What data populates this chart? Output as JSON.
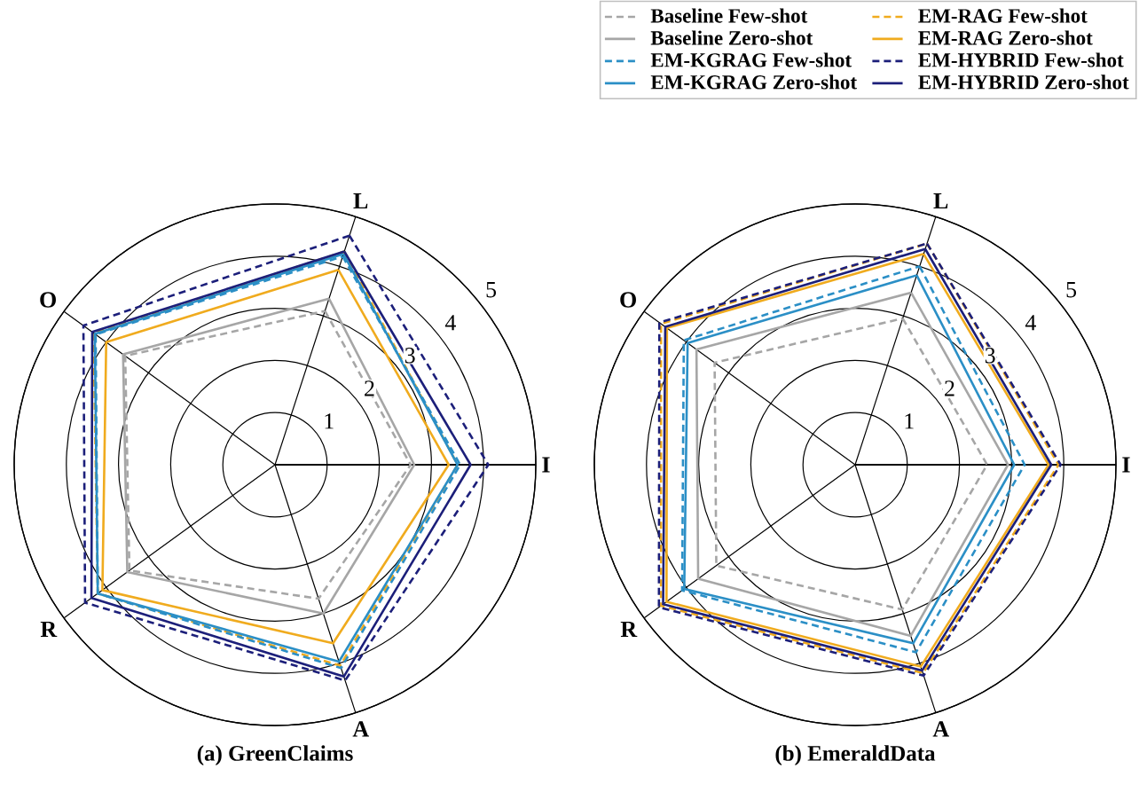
{
  "chart_data": [
    {
      "type": "radar",
      "title": "(a) GreenClaims",
      "categories": [
        "L",
        "I",
        "A",
        "R",
        "O"
      ],
      "ylim": [
        0,
        5
      ],
      "yticks": [
        1,
        2,
        3,
        4,
        5
      ],
      "grid": true,
      "series": [
        {
          "color": "#a6a6a6",
          "line_style": "dashed",
          "values": [
            3.1,
            2.6,
            2.7,
            3.45,
            3.55
          ]
        },
        {
          "color": "#f0ab1e",
          "line_style": "dashed",
          "values": [
            4.3,
            3.5,
            4.05,
            4.2,
            4.3
          ]
        },
        {
          "color": "#a6a6a6",
          "line_style": "solid",
          "values": [
            3.35,
            2.67,
            3.0,
            3.5,
            3.6
          ]
        },
        {
          "color": "#f0ab1e",
          "line_style": "solid",
          "values": [
            3.93,
            3.33,
            3.6,
            4.09,
            4.0
          ]
        },
        {
          "color": "#2b8fc6",
          "line_style": "dashed",
          "values": [
            4.2,
            3.55,
            4.1,
            4.2,
            4.25
          ]
        },
        {
          "color": "#1c1f7a",
          "line_style": "dashed",
          "values": [
            4.62,
            4.09,
            4.35,
            4.5,
            4.54
          ]
        },
        {
          "color": "#2b8fc6",
          "line_style": "solid",
          "values": [
            4.25,
            3.5,
            3.97,
            4.2,
            4.27
          ]
        },
        {
          "color": "#1c1f7a",
          "line_style": "solid",
          "values": [
            4.3,
            3.75,
            4.27,
            4.35,
            4.33
          ]
        }
      ]
    },
    {
      "type": "radar",
      "title": "(b) EmeraldData",
      "categories": [
        "L",
        "I",
        "A",
        "R",
        "O"
      ],
      "ylim": [
        0,
        5
      ],
      "yticks": [
        1,
        2,
        3,
        4,
        5
      ],
      "grid": true,
      "legend": "top",
      "series": [
        {
          "name": "Baseline Few-shot",
          "color": "#a6a6a6",
          "line_style": "dashed",
          "values": [
            2.95,
            2.53,
            2.92,
            3.29,
            3.33
          ]
        },
        {
          "name": "EM-RAG Few-shot",
          "color": "#f0ab1e",
          "line_style": "dashed",
          "values": [
            4.46,
            3.9,
            4.2,
            4.6,
            4.6
          ]
        },
        {
          "name": "Baseline Zero-shot",
          "color": "#a6a6a6",
          "line_style": "solid",
          "values": [
            3.47,
            2.93,
            3.45,
            3.72,
            3.76
          ]
        },
        {
          "name": "EM-RAG Zero-shot",
          "color": "#f0ab1e",
          "line_style": "solid",
          "values": [
            4.25,
            3.71,
            4.07,
            4.47,
            4.46
          ]
        },
        {
          "name": "EM-KGRAG Few-shot",
          "color": "#2b8fc6",
          "line_style": "dashed",
          "values": [
            4.0,
            3.25,
            3.78,
            4.1,
            4.06
          ]
        },
        {
          "name": "EM-HYBRID Few-shot",
          "color": "#1c1f7a",
          "line_style": "dashed",
          "values": [
            4.46,
            3.94,
            4.25,
            4.65,
            4.64
          ]
        },
        {
          "name": "EM-KGRAG Zero-shot",
          "color": "#2b8fc6",
          "line_style": "solid",
          "values": [
            3.82,
            3.05,
            3.6,
            4.05,
            3.97
          ]
        },
        {
          "name": "EM-HYBRID Zero-shot",
          "color": "#1c1f7a",
          "line_style": "solid",
          "values": [
            4.35,
            3.76,
            4.15,
            4.55,
            4.5
          ]
        }
      ]
    }
  ]
}
